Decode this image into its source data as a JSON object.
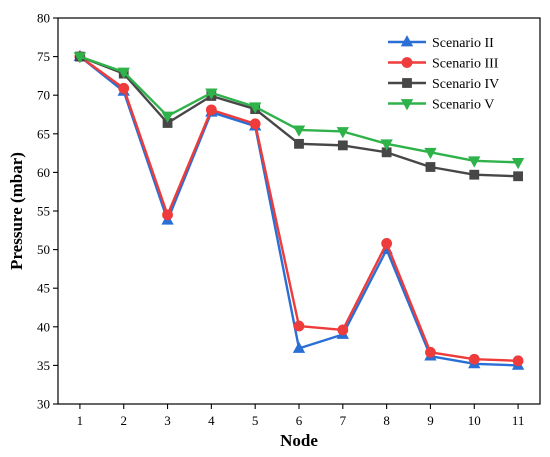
{
  "chart_data": {
    "type": "line",
    "title": "",
    "xlabel": "Node",
    "ylabel": "Pressure (mbar)",
    "x": [
      1,
      2,
      3,
      4,
      5,
      6,
      7,
      8,
      9,
      10,
      11
    ],
    "xlim": [
      0.5,
      11.5
    ],
    "ylim": [
      30,
      80
    ],
    "yticks": [
      30,
      35,
      40,
      45,
      50,
      55,
      60,
      65,
      70,
      75,
      80
    ],
    "grid": false,
    "legend_position": "top-right",
    "series": [
      {
        "name": "Scenario II",
        "color": "#2a6fd6",
        "marker": "triangle-up",
        "values": [
          75.0,
          70.5,
          53.8,
          67.8,
          66.0,
          37.2,
          39.0,
          50.0,
          36.2,
          35.2,
          35.0
        ]
      },
      {
        "name": "Scenario III",
        "color": "#ee3b3b",
        "marker": "circle",
        "values": [
          75.0,
          70.9,
          54.5,
          68.1,
          66.3,
          40.1,
          39.6,
          50.8,
          36.7,
          35.8,
          35.6
        ]
      },
      {
        "name": "Scenario IV",
        "color": "#474747",
        "marker": "square",
        "values": [
          75.0,
          72.8,
          66.4,
          69.9,
          68.2,
          63.7,
          63.5,
          62.6,
          60.7,
          59.7,
          59.5
        ]
      },
      {
        "name": "Scenario V",
        "color": "#2fb24a",
        "marker": "triangle-down",
        "values": [
          75.0,
          73.0,
          67.3,
          70.3,
          68.5,
          65.5,
          65.3,
          63.7,
          62.6,
          61.5,
          61.3
        ]
      }
    ]
  }
}
